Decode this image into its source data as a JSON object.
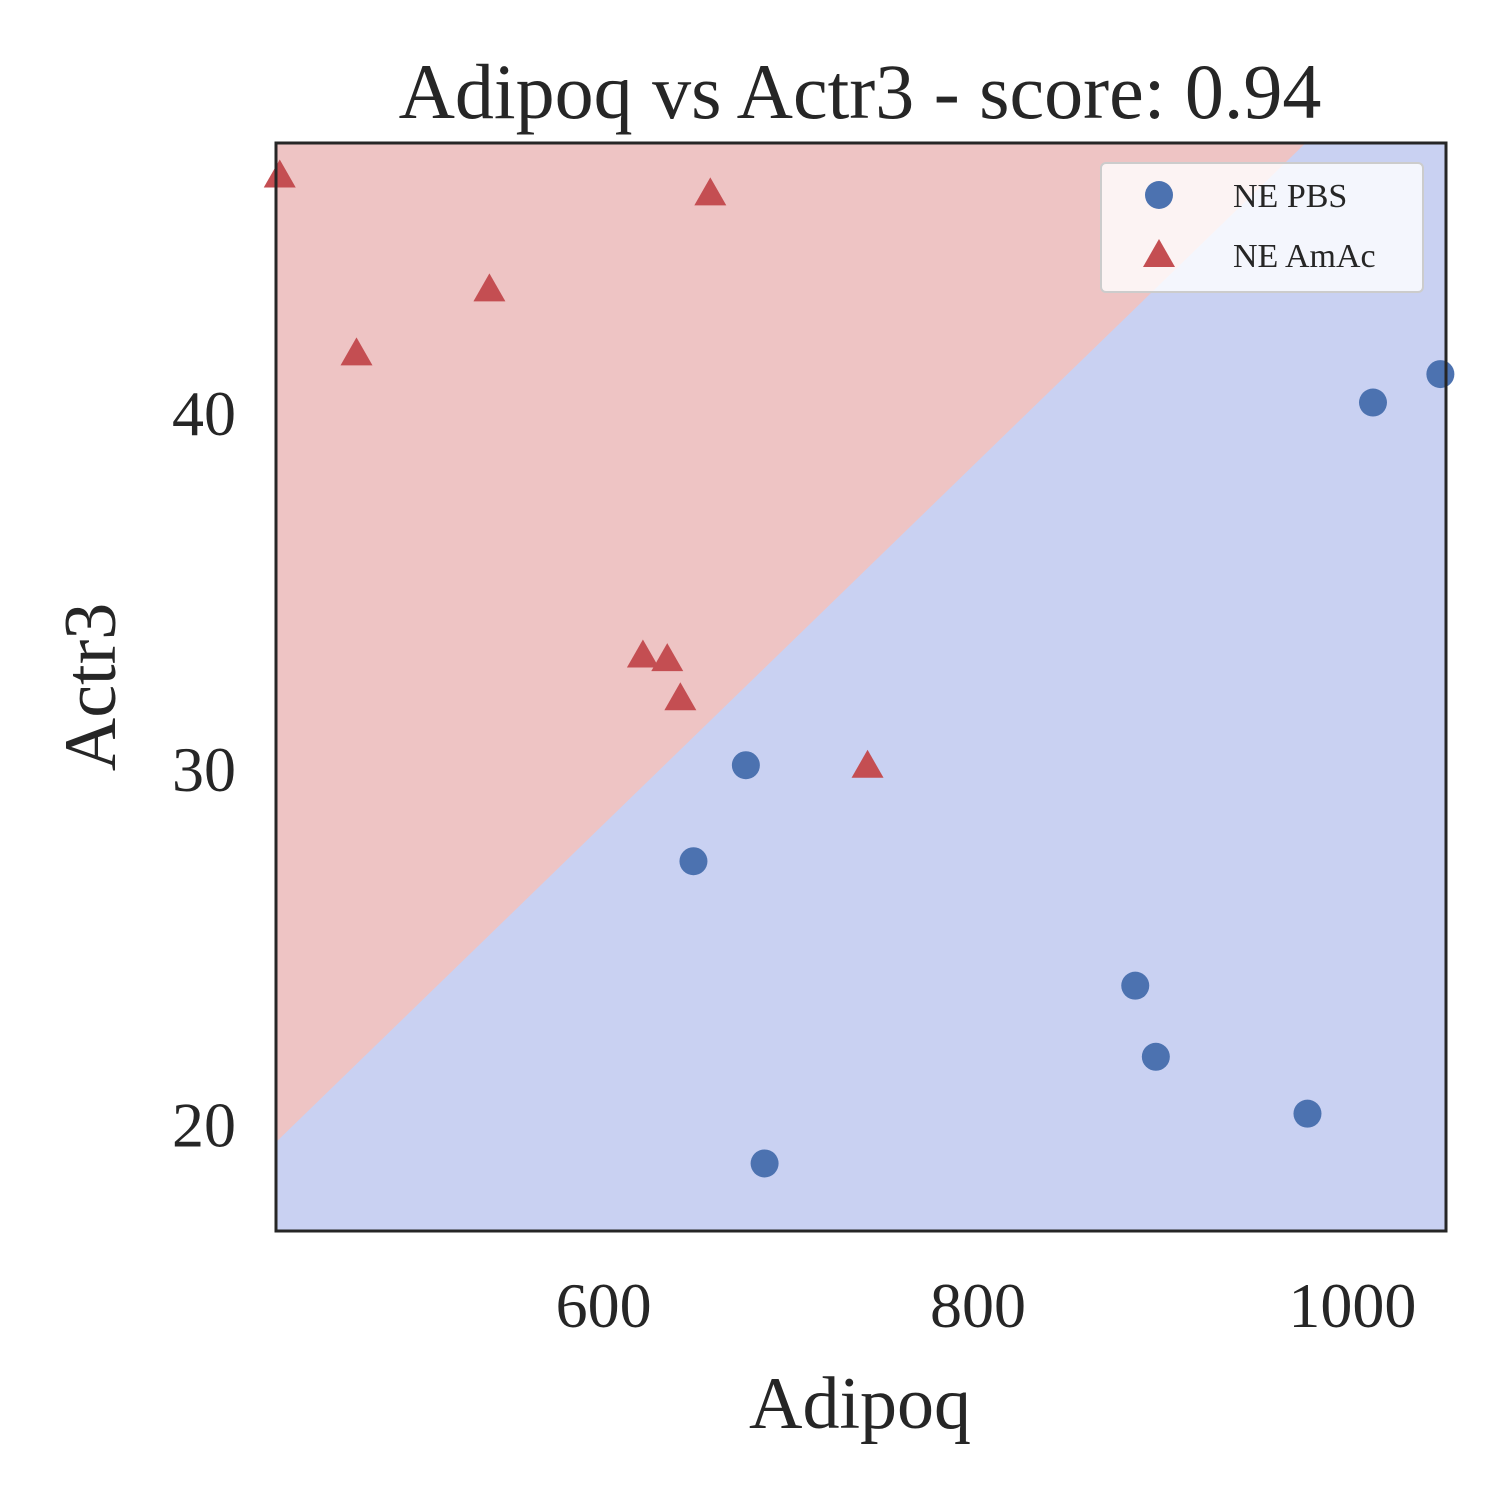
{
  "chart_data": {
    "type": "scatter",
    "title": "Adipoq vs Actr3 - score: 0.94",
    "xlabel": "Adipoq",
    "ylabel": "Actr3",
    "xlim": [
      425,
      1050
    ],
    "ylim": [
      17,
      47.6
    ],
    "xticks": [
      {
        "value": 600,
        "label": "600"
      },
      {
        "value": 800,
        "label": "800"
      },
      {
        "value": 1000,
        "label": "1000"
      }
    ],
    "yticks": [
      {
        "value": 20,
        "label": "20"
      },
      {
        "value": 30,
        "label": "30"
      },
      {
        "value": 40,
        "label": "40"
      }
    ],
    "grid": false,
    "legend_position": "top-right",
    "decision_boundary": {
      "points": [
        [
          425,
          19.5
        ],
        [
          975,
          47.6
        ]
      ],
      "region_above": "NE AmAc",
      "region_below": "NE PBS",
      "color_above": "#eec4c4",
      "color_below": "#c9d1f2"
    },
    "series": [
      {
        "name": "NE PBS",
        "marker": "circle",
        "color": "#4c72b0",
        "points": [
          [
            648,
            27.4
          ],
          [
            676,
            30.1
          ],
          [
            686,
            18.9
          ],
          [
            884,
            23.9
          ],
          [
            895,
            21.9
          ],
          [
            976,
            20.3
          ],
          [
            1011,
            40.3
          ],
          [
            1047,
            41.1
          ]
        ]
      },
      {
        "name": "NE AmAc",
        "marker": "triangle",
        "color": "#c44e52",
        "points": [
          [
            427,
            46.6
          ],
          [
            468,
            41.6
          ],
          [
            539,
            43.4
          ],
          [
            621,
            33.1
          ],
          [
            634,
            33.0
          ],
          [
            641,
            31.9
          ],
          [
            657,
            46.1
          ],
          [
            741,
            30.0
          ]
        ]
      }
    ]
  }
}
